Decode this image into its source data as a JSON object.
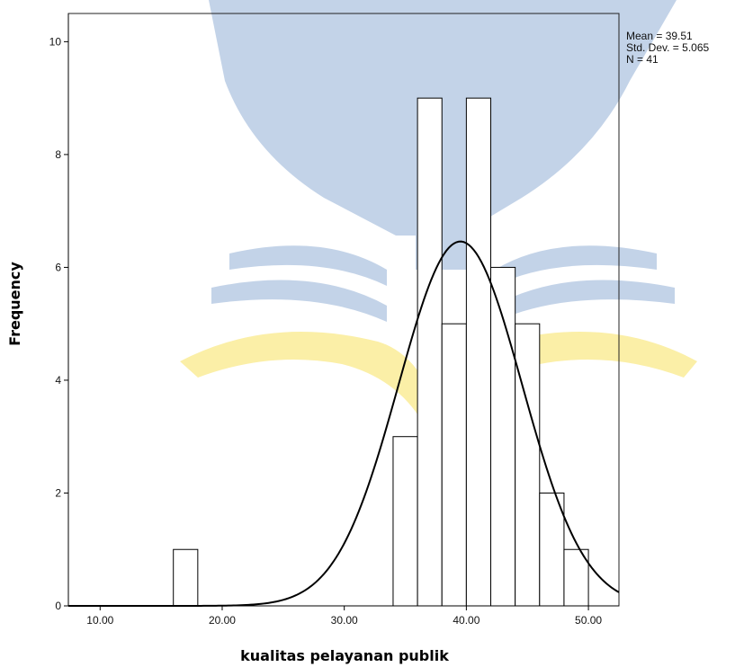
{
  "chart_data": {
    "type": "bar",
    "subtype": "histogram",
    "xlabel": "kualitas pelayanan publik",
    "ylabel": "Frequency",
    "xlim": [
      7.4,
      52.5
    ],
    "ylim": [
      0,
      10.5
    ],
    "x_ticks": [
      {
        "value": 10,
        "label": "10.00"
      },
      {
        "value": 20,
        "label": "20.00"
      },
      {
        "value": 30,
        "label": "30.00"
      },
      {
        "value": 40,
        "label": "40.00"
      },
      {
        "value": 50,
        "label": "50.00"
      }
    ],
    "y_ticks": [
      {
        "value": 0,
        "label": "0"
      },
      {
        "value": 2,
        "label": "2"
      },
      {
        "value": 4,
        "label": "4"
      },
      {
        "value": 6,
        "label": "6"
      },
      {
        "value": 8,
        "label": "8"
      },
      {
        "value": 10,
        "label": "10"
      }
    ],
    "bins": [
      {
        "x0": 16,
        "x1": 18,
        "value": 1
      },
      {
        "x0": 34,
        "x1": 36,
        "value": 3
      },
      {
        "x0": 36,
        "x1": 38,
        "value": 9
      },
      {
        "x0": 38,
        "x1": 40,
        "value": 5
      },
      {
        "x0": 40,
        "x1": 42,
        "value": 9
      },
      {
        "x0": 42,
        "x1": 44,
        "value": 6
      },
      {
        "x0": 44,
        "x1": 46,
        "value": 5
      },
      {
        "x0": 46,
        "x1": 48,
        "value": 2
      },
      {
        "x0": 48,
        "x1": 50,
        "value": 1
      }
    ],
    "normal_curve": {
      "mean": 39.51,
      "std": 5.065,
      "n": 41,
      "bin_width": 2
    },
    "stats": [
      "Mean = 39.51",
      "Std. Dev. = 5.065",
      "N = 41"
    ],
    "colors": {
      "bar_fill": "#ffffff",
      "bar_stroke": "#000000",
      "curve": "#000000",
      "watermark_blue": "#c3d3e8",
      "watermark_yellow": "#fbefa7"
    },
    "grid": false
  }
}
